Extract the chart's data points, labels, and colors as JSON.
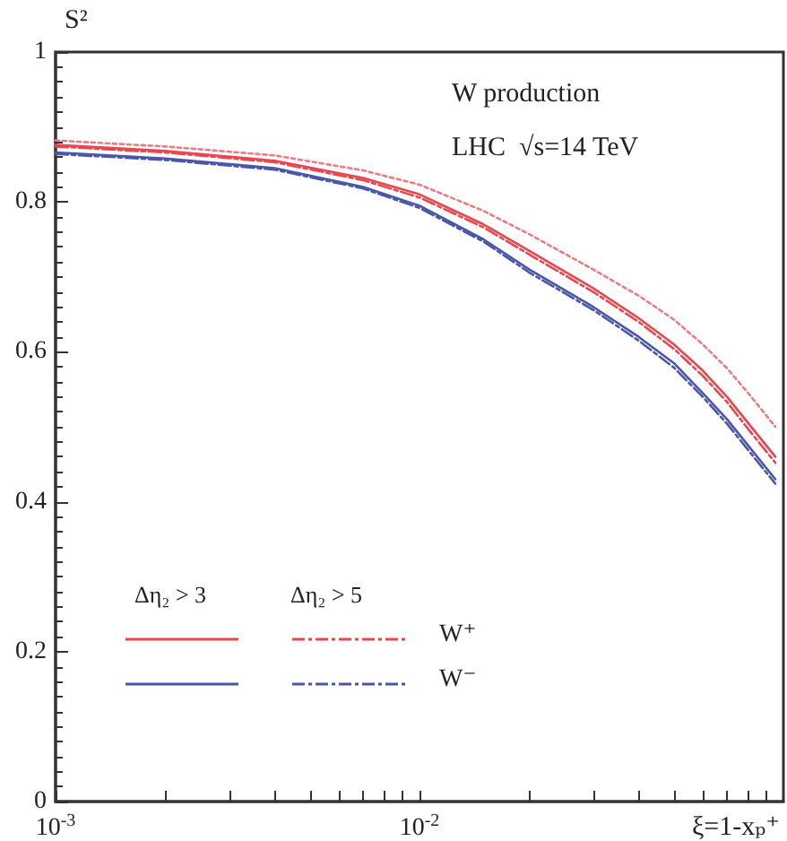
{
  "chart_data": {
    "type": "line",
    "xlabel": "ξ=1-xₚ⁺",
    "ylabel": "S²",
    "annotations": [
      "W production",
      "LHC  √s=14 TeV",
      "Δη₂ > 3",
      "Δη₂ > 5",
      "W⁺",
      "W⁻"
    ],
    "x": [
      0.001,
      0.002,
      0.004,
      0.007,
      0.01,
      0.015,
      0.02,
      0.03,
      0.04,
      0.05,
      0.06,
      0.07,
      0.08,
      0.095
    ],
    "series": [
      {
        "color": "#e8474f",
        "line_style": "solid",
        "values": [
          0.876,
          0.868,
          0.855,
          0.832,
          0.81,
          0.77,
          0.735,
          0.685,
          0.645,
          0.61,
          0.575,
          0.54,
          0.505,
          0.46
        ]
      },
      {
        "color": "#e8474f",
        "line_style": "dashed",
        "values": [
          0.874,
          0.866,
          0.853,
          0.829,
          0.806,
          0.766,
          0.73,
          0.68,
          0.64,
          0.604,
          0.568,
          0.533,
          0.497,
          0.452
        ]
      },
      {
        "color": "#4a56a8",
        "line_style": "solid",
        "values": [
          0.866,
          0.858,
          0.845,
          0.82,
          0.795,
          0.75,
          0.71,
          0.66,
          0.62,
          0.585,
          0.545,
          0.51,
          0.475,
          0.43
        ]
      },
      {
        "color": "#4a56a8",
        "line_style": "dashed",
        "values": [
          0.864,
          0.856,
          0.843,
          0.818,
          0.792,
          0.747,
          0.706,
          0.656,
          0.615,
          0.579,
          0.54,
          0.504,
          0.469,
          0.424
        ]
      },
      {
        "color": "#f07a80",
        "line_style": "dotted",
        "values": [
          0.882,
          0.874,
          0.862,
          0.842,
          0.823,
          0.788,
          0.757,
          0.71,
          0.675,
          0.643,
          0.61,
          0.578,
          0.545,
          0.5
        ]
      }
    ],
    "log": "x",
    "xlim": [
      0.001,
      0.1
    ],
    "ylim": [
      0,
      1
    ],
    "xticks": [
      {
        "value": 0.001,
        "label": "10$^{-3}$"
      },
      {
        "value": 0.002,
        "label": null
      },
      {
        "value": 0.003,
        "label": null
      },
      {
        "value": 0.004,
        "label": null
      },
      {
        "value": 0.005,
        "label": null
      },
      {
        "value": 0.006,
        "label": null
      },
      {
        "value": 0.007,
        "label": null
      },
      {
        "value": 0.008,
        "label": null
      },
      {
        "value": 0.009,
        "label": null
      },
      {
        "value": 0.01,
        "label": "10$^{-2}$"
      },
      {
        "value": 0.02,
        "label": null
      },
      {
        "value": 0.03,
        "label": null
      },
      {
        "value": 0.04,
        "label": null
      },
      {
        "value": 0.05,
        "label": null
      },
      {
        "value": 0.06,
        "label": null
      },
      {
        "value": 0.07,
        "label": null
      },
      {
        "value": 0.08,
        "label": null
      },
      {
        "value": 0.09,
        "label": null
      }
    ],
    "yticks": [
      0,
      0.2,
      0.4,
      0.6,
      0.8,
      1
    ],
    "grid": false,
    "marker": "none"
  }
}
